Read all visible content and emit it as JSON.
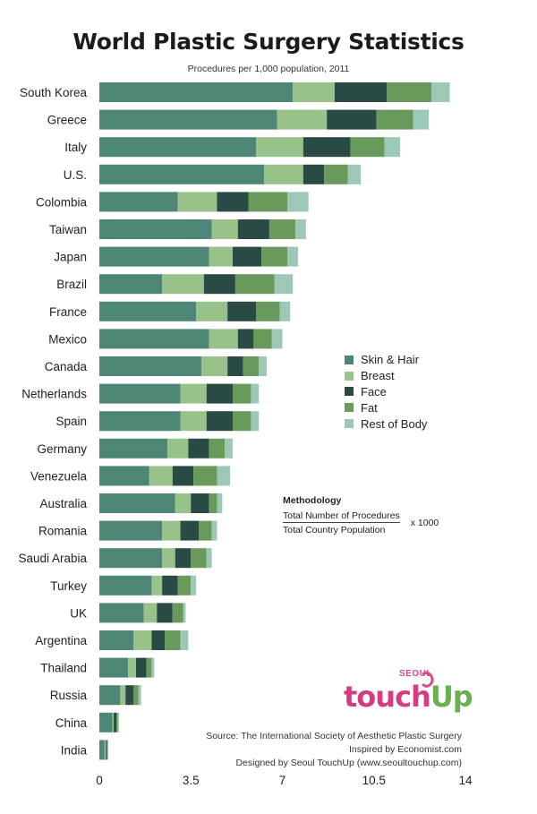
{
  "title": "World Plastic Surgery Statistics",
  "subtitle": "Procedures per 1,000 population, 2011",
  "legend": [
    {
      "label": "Skin & Hair",
      "color": "#4d8577"
    },
    {
      "label": "Breast",
      "color": "#98c28a"
    },
    {
      "label": "Face",
      "color": "#2a4b45"
    },
    {
      "label": "Fat",
      "color": "#6a9a5b"
    },
    {
      "label": "Rest of Body",
      "color": "#9cc8b5"
    }
  ],
  "methodology": {
    "heading": "Methodology",
    "numerator": "Total Number of Procedures",
    "denominator": "Total Country Population",
    "multiplier": "x 1000"
  },
  "logo": {
    "small": "SEOUL",
    "word_a": "touch",
    "word_b": "Up"
  },
  "credits": {
    "source": "Source: The International Society of Aesthetic Plastic Surgery",
    "inspired": "Inspired by Economist.com",
    "designed": "Designed by Seoul TouchUp (www.seoultouchup.com)"
  },
  "chart_data": {
    "type": "bar",
    "orientation": "horizontal",
    "stacked": true,
    "title": "World Plastic Surgery Statistics",
    "subtitle": "Procedures per 1,000 population, 2011",
    "xlim": [
      0,
      14
    ],
    "xticks": [
      "0",
      "3.5",
      "7",
      "10.5",
      "14"
    ],
    "xtick_values": [
      0,
      3.5,
      7,
      10.5,
      14
    ],
    "grid": false,
    "legend_position": "right",
    "categories": [
      "South Korea",
      "Greece",
      "Italy",
      "U.S.",
      "Colombia",
      "Taiwan",
      "Japan",
      "Brazil",
      "France",
      "Mexico",
      "Canada",
      "Netherlands",
      "Spain",
      "Germany",
      "Venezuela",
      "Australia",
      "Romania",
      "Saudi Arabia",
      "Turkey",
      "UK",
      "Argentina",
      "Thailand",
      "Russia",
      "China",
      "India"
    ],
    "series": [
      {
        "name": "Skin & Hair",
        "color": "#4d8577",
        "values": [
          7.4,
          6.8,
          6.0,
          6.3,
          3.0,
          4.3,
          4.2,
          2.4,
          3.7,
          4.2,
          3.9,
          3.1,
          3.1,
          2.6,
          1.9,
          2.9,
          2.4,
          2.4,
          2.0,
          1.7,
          1.3,
          1.1,
          0.8,
          0.5,
          0.2
        ]
      },
      {
        "name": "Breast",
        "color": "#98c28a",
        "values": [
          1.6,
          1.9,
          1.8,
          1.5,
          1.5,
          1.0,
          0.9,
          1.6,
          1.2,
          1.1,
          1.0,
          1.0,
          1.0,
          0.8,
          0.9,
          0.6,
          0.7,
          0.5,
          0.4,
          0.5,
          0.7,
          0.3,
          0.2,
          0.05,
          0.05
        ]
      },
      {
        "name": "Face",
        "color": "#2a4b45",
        "values": [
          2.0,
          1.9,
          1.8,
          0.8,
          1.2,
          1.2,
          1.1,
          1.2,
          1.1,
          0.6,
          0.6,
          1.0,
          1.0,
          0.8,
          0.8,
          0.7,
          0.7,
          0.6,
          0.6,
          0.6,
          0.5,
          0.4,
          0.3,
          0.1,
          0.05
        ]
      },
      {
        "name": "Fat",
        "color": "#6a9a5b",
        "values": [
          1.7,
          1.4,
          1.3,
          0.9,
          1.5,
          1.0,
          1.0,
          1.5,
          0.9,
          0.7,
          0.6,
          0.7,
          0.7,
          0.6,
          0.9,
          0.3,
          0.5,
          0.6,
          0.5,
          0.4,
          0.6,
          0.2,
          0.2,
          0.05,
          0.02
        ]
      },
      {
        "name": "Rest of Body",
        "color": "#9cc8b5",
        "values": [
          0.7,
          0.6,
          0.6,
          0.5,
          0.8,
          0.4,
          0.4,
          0.7,
          0.4,
          0.4,
          0.3,
          0.3,
          0.3,
          0.3,
          0.5,
          0.2,
          0.2,
          0.2,
          0.2,
          0.1,
          0.3,
          0.1,
          0.1,
          0.05,
          0.02
        ]
      }
    ]
  }
}
